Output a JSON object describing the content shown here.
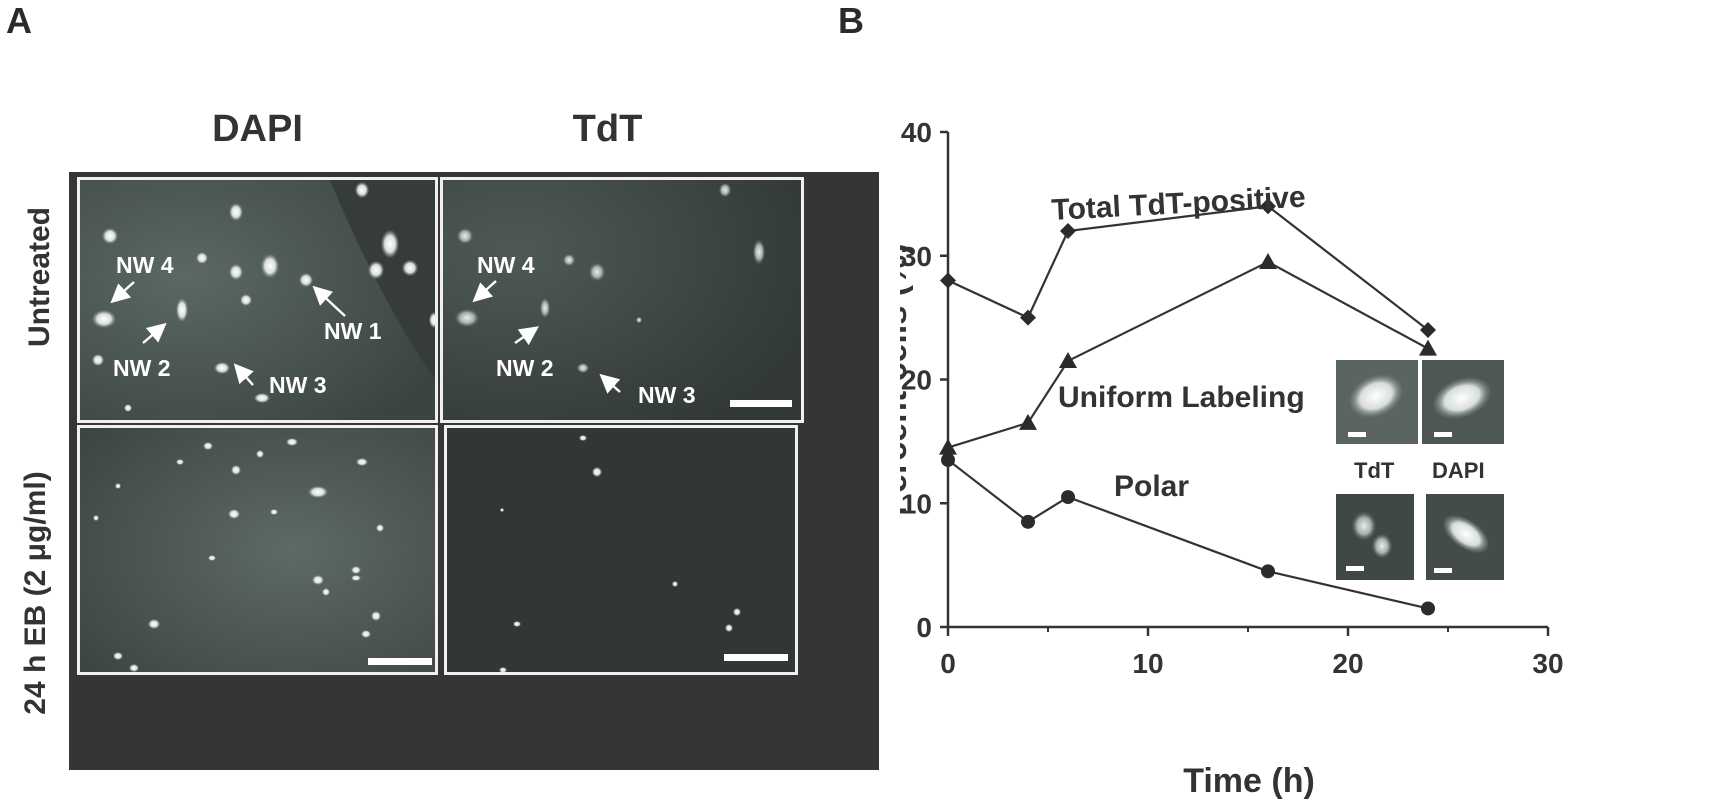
{
  "panels": {
    "a_label": "A",
    "b_label": "B"
  },
  "microscopy": {
    "columns": [
      "DAPI",
      "TdT"
    ],
    "rows": [
      "Untreated",
      "24 h EB (2 μg/ml)"
    ],
    "annotations_dapi": [
      "NW 4",
      "NW 1",
      "NW 2",
      "NW 3"
    ],
    "annotations_tdt": [
      "NW 4",
      "NW 2",
      "NW 3"
    ]
  },
  "chart_data": {
    "type": "line",
    "title": "",
    "xlabel": "Time (h)",
    "ylabel": "Percent cells (%)",
    "xlim": [
      0,
      30
    ],
    "ylim": [
      0,
      40
    ],
    "xticks": [
      0,
      10,
      20,
      30
    ],
    "yticks": [
      0,
      10,
      20,
      30,
      40
    ],
    "grid": false,
    "legend": "inline labels",
    "series": [
      {
        "name": "Total TdT-positive",
        "marker": "diamond",
        "x": [
          0,
          4,
          6,
          16,
          24
        ],
        "y": [
          28,
          25,
          32,
          34,
          24
        ]
      },
      {
        "name": "Uniform Labeling",
        "marker": "triangle",
        "x": [
          0,
          4,
          6,
          16,
          24
        ],
        "y": [
          14.5,
          16.5,
          21.5,
          29.5,
          22.5
        ]
      },
      {
        "name": "Polar",
        "marker": "circle",
        "x": [
          0,
          4,
          6,
          16,
          24
        ],
        "y": [
          13.5,
          8.5,
          10.5,
          4.5,
          1.5
        ]
      }
    ],
    "inset_labels": [
      "TdT",
      "DAPI"
    ]
  }
}
